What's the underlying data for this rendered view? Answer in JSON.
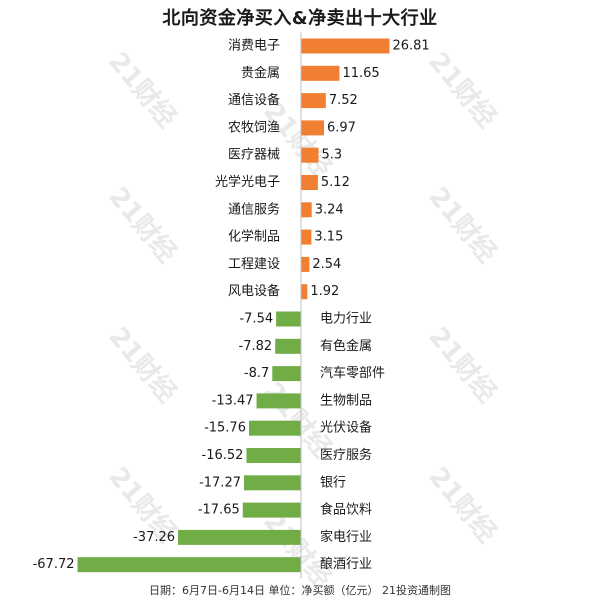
{
  "chart_data": {
    "type": "bar",
    "orientation": "horizontal",
    "title": "北向资金净买入&净卖出十大行业",
    "footnote": "日期：6月7日-6月14日 单位：净买额（亿元） 21投资通制图",
    "watermark": "21财经",
    "categories": [
      "消费电子",
      "贵金属",
      "通信设备",
      "农牧饲渔",
      "医疗器械",
      "光学光电子",
      "通信服务",
      "化学制品",
      "工程建设",
      "风电设备",
      "电力行业",
      "有色金属",
      "汽车零部件",
      "生物制品",
      "光伏设备",
      "医疗服务",
      "银行",
      "食品饮料",
      "家电行业",
      "酿酒行业"
    ],
    "values": [
      26.81,
      11.65,
      7.52,
      6.97,
      5.3,
      5.12,
      3.24,
      3.15,
      2.54,
      1.92,
      -7.54,
      -7.82,
      -8.7,
      -13.47,
      -15.76,
      -16.52,
      -17.27,
      -17.65,
      -37.26,
      -67.72
    ],
    "colors": {
      "positive": "#f07f32",
      "negative": "#70ad47"
    },
    "grid": false,
    "legend": "none"
  }
}
